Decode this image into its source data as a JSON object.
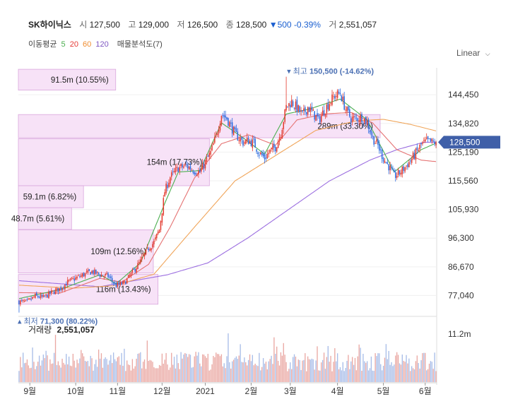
{
  "header": {
    "name": "SK하이닉스",
    "open_label": "시",
    "open": "127,500",
    "high_label": "고",
    "high": "129,000",
    "low_label": "저",
    "low": "126,500",
    "close_label": "종",
    "close": "128,500",
    "change": "▼500",
    "change_pct": "-0.39%",
    "volume_label": "거",
    "volume": "2,551,057"
  },
  "ma_legend": {
    "label": "이동평균",
    "periods": [
      {
        "text": "5",
        "color": "#4caf50"
      },
      {
        "text": "20",
        "color": "#e53935"
      },
      {
        "text": "60",
        "color": "#f08c2e"
      },
      {
        "text": "120",
        "color": "#7e57c2"
      }
    ],
    "profile_label": "매물분석도(7)"
  },
  "scale_mode": "Linear",
  "colors": {
    "up": "#e33b2f",
    "down": "#2f6ee0",
    "ma5": "#4caf50",
    "ma20": "#e57373",
    "ma60": "#f0a55a",
    "ma120": "#9c6fe0",
    "profile_fill": "#f7e2f7",
    "profile_stroke": "#d9a6dd",
    "current_tag": "#3f5fa8"
  },
  "chart_data": {
    "type": "candlestick",
    "y_ticks": [
      "144,450",
      "134,820",
      "125,190",
      "115,560",
      "105,930",
      "96,300",
      "86,670",
      "77,040"
    ],
    "y_tick_values": [
      144450,
      134820,
      125190,
      115560,
      105930,
      96300,
      86670,
      77040
    ],
    "ylim": [
      70500,
      153500
    ],
    "x_ticks": [
      "9월",
      "10월",
      "11월",
      "12월",
      "2021",
      "2월",
      "3월",
      "4월",
      "5월",
      "6월"
    ],
    "x_tick_index": [
      8,
      42,
      73,
      106,
      138,
      172,
      201,
      236,
      270,
      301
    ],
    "bar_count": 310,
    "current_price": "128,500",
    "current_value": 128500,
    "max_label": "최고",
    "max_value": "150,500 (-14.62%)",
    "max_index": 198,
    "max_price": 150500,
    "min_label": "최저",
    "min_value": "71,300 (80.22%)",
    "min_index": 0,
    "min_price": 71300,
    "price_anchors": [
      [
        0,
        75000
      ],
      [
        6,
        74800
      ],
      [
        12,
        76800
      ],
      [
        18,
        76300
      ],
      [
        24,
        78000
      ],
      [
        30,
        79200
      ],
      [
        36,
        81500
      ],
      [
        42,
        82800
      ],
      [
        48,
        84100
      ],
      [
        54,
        85100
      ],
      [
        60,
        84000
      ],
      [
        66,
        83500
      ],
      [
        72,
        80300
      ],
      [
        78,
        81200
      ],
      [
        84,
        84800
      ],
      [
        90,
        88500
      ],
      [
        96,
        93000
      ],
      [
        100,
        94900
      ],
      [
        104,
        99200
      ],
      [
        108,
        112000
      ],
      [
        112,
        116800
      ],
      [
        118,
        119800
      ],
      [
        124,
        120600
      ],
      [
        130,
        119000
      ],
      [
        134,
        118400
      ],
      [
        138,
        121700
      ],
      [
        142,
        125000
      ],
      [
        146,
        130500
      ],
      [
        150,
        138000
      ],
      [
        154,
        136500
      ],
      [
        160,
        131300
      ],
      [
        166,
        128500
      ],
      [
        170,
        129000
      ],
      [
        174,
        128200
      ],
      [
        178,
        124900
      ],
      [
        182,
        123200
      ],
      [
        186,
        125500
      ],
      [
        190,
        126900
      ],
      [
        194,
        131700
      ],
      [
        198,
        140300
      ],
      [
        202,
        142100
      ],
      [
        206,
        140000
      ],
      [
        210,
        137600
      ],
      [
        214,
        140300
      ],
      [
        218,
        138100
      ],
      [
        222,
        135900
      ],
      [
        226,
        139100
      ],
      [
        230,
        141900
      ],
      [
        234,
        144100
      ],
      [
        238,
        145000
      ],
      [
        242,
        139600
      ],
      [
        246,
        136500
      ],
      [
        250,
        136400
      ],
      [
        254,
        137000
      ],
      [
        258,
        135200
      ],
      [
        262,
        130000
      ],
      [
        266,
        127300
      ],
      [
        270,
        123100
      ],
      [
        274,
        120400
      ],
      [
        278,
        117000
      ],
      [
        282,
        118200
      ],
      [
        286,
        120100
      ],
      [
        290,
        122300
      ],
      [
        294,
        124800
      ],
      [
        298,
        127600
      ],
      [
        302,
        128800
      ],
      [
        306,
        128500
      ],
      [
        309,
        128500
      ]
    ],
    "ma5_anchors": [
      [
        0,
        76000
      ],
      [
        30,
        79000
      ],
      [
        60,
        84000
      ],
      [
        72,
        81000
      ],
      [
        90,
        88000
      ],
      [
        108,
        108000
      ],
      [
        118,
        118500
      ],
      [
        134,
        119000
      ],
      [
        150,
        135000
      ],
      [
        166,
        130000
      ],
      [
        182,
        124500
      ],
      [
        198,
        138000
      ],
      [
        214,
        139500
      ],
      [
        238,
        143000
      ],
      [
        258,
        136000
      ],
      [
        278,
        118500
      ],
      [
        298,
        126000
      ],
      [
        309,
        128200
      ]
    ],
    "ma20_anchors": [
      [
        0,
        78000
      ],
      [
        30,
        77800
      ],
      [
        60,
        82800
      ],
      [
        76,
        81500
      ],
      [
        96,
        87500
      ],
      [
        112,
        100000
      ],
      [
        130,
        116500
      ],
      [
        150,
        128000
      ],
      [
        170,
        131000
      ],
      [
        190,
        127500
      ],
      [
        206,
        136000
      ],
      [
        226,
        138000
      ],
      [
        246,
        138500
      ],
      [
        262,
        135000
      ],
      [
        280,
        126000
      ],
      [
        298,
        122500
      ],
      [
        309,
        122000
      ]
    ],
    "ma60_anchors": [
      [
        0,
        80500
      ],
      [
        40,
        79500
      ],
      [
        70,
        80300
      ],
      [
        100,
        84200
      ],
      [
        130,
        100000
      ],
      [
        160,
        115500
      ],
      [
        190,
        124000
      ],
      [
        220,
        132500
      ],
      [
        250,
        135700
      ],
      [
        270,
        136200
      ],
      [
        290,
        134500
      ],
      [
        309,
        132300
      ]
    ],
    "ma120_anchors": [
      [
        0,
        82000
      ],
      [
        60,
        80000
      ],
      [
        110,
        84000
      ],
      [
        140,
        88000
      ],
      [
        170,
        96500
      ],
      [
        200,
        106000
      ],
      [
        230,
        115500
      ],
      [
        260,
        122500
      ],
      [
        280,
        126000
      ],
      [
        300,
        128500
      ],
      [
        309,
        128500
      ]
    ],
    "volume_profile": [
      {
        "label": "91.5m (10.55%)",
        "low": 146000,
        "high": 153000,
        "width": 0.269
      },
      {
        "label": "289m (33.30%)",
        "low": 130000,
        "high": 137800,
        "width": 1.0
      },
      {
        "label": "154m (17.73%)",
        "low": 113900,
        "high": 129700,
        "width": 0.528
      },
      {
        "label": "59.1m (6.82%)",
        "low": 106500,
        "high": 113900,
        "width": 0.18
      },
      {
        "label": "48.7m (5.61%)",
        "low": 99200,
        "high": 106500,
        "width": 0.147
      },
      {
        "label": "109m (12.56%)",
        "low": 84600,
        "high": 99100,
        "width": 0.373
      },
      {
        "label": "116m (13.43%)",
        "low": 74100,
        "high": 84100,
        "width": 0.386
      }
    ],
    "volume": {
      "label": "거래량",
      "latest": "2,551,057",
      "axis_tick": "11.2m",
      "axis_value": 11200000,
      "ymax": 14000000
    }
  }
}
